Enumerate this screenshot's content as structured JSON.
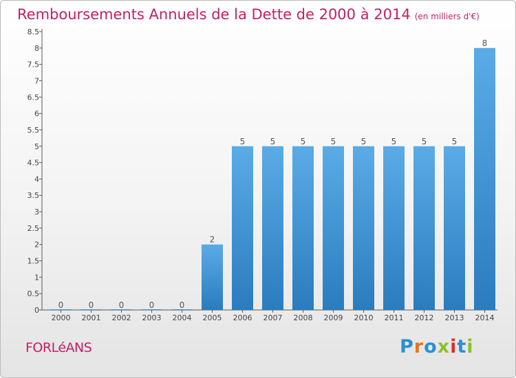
{
  "header": {
    "title": "Remboursements Annuels de la Dette de 2000 à 2014",
    "unit": "(en milliers d'€)"
  },
  "footer": {
    "commune": "FORLéANS",
    "logo_text": "Proxiti",
    "logo_colors": [
      "#2a8fd6",
      "#e8741b",
      "#2a8fd6",
      "#8fbf2f",
      "#d6342a",
      "#2a8fd6",
      "#8fbf2f"
    ]
  },
  "colors": {
    "title": "#c41e64",
    "bar_top": "#5aabe6",
    "bar_bottom": "#2a7cbe",
    "axis": "#555555"
  },
  "chart_data": {
    "type": "bar",
    "categories": [
      "2000",
      "2001",
      "2002",
      "2003",
      "2004",
      "2005",
      "2006",
      "2007",
      "2008",
      "2009",
      "2010",
      "2011",
      "2012",
      "2013",
      "2014"
    ],
    "values": [
      0,
      0,
      0,
      0,
      0,
      2,
      5,
      5,
      5,
      5,
      5,
      5,
      5,
      5,
      8
    ],
    "data_labels": [
      "0",
      "0",
      "0",
      "0",
      "0",
      "2",
      "5",
      "5",
      "5",
      "5",
      "5",
      "5",
      "5",
      "5",
      "8"
    ],
    "y_ticks": [
      "0",
      "0.5",
      "1",
      "1.5",
      "2",
      "2.5",
      "3",
      "3.5",
      "4",
      "4.5",
      "5",
      "5.5",
      "6",
      "6.5",
      "7",
      "7.5",
      "8",
      "8.5"
    ],
    "ylim": [
      0,
      8.5
    ],
    "grid": false,
    "legend": "none"
  }
}
